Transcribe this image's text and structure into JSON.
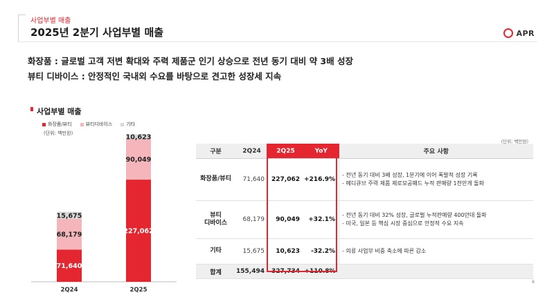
{
  "header": {
    "section_label": "사업부별 매출",
    "page_title": "2025년 2분기 사업부별 매출",
    "logo_text": "APR",
    "accent_color": "#e3262f"
  },
  "headlines": [
    "화장품 : 글로벌 고객 저변 확대와 주력 제품군 인기 상승으로 전년 동기 대비 약 3배 성장",
    "뷰티 디바이스 : 안정적인 국내외 수요를 바탕으로 견고한 성장세 지속"
  ],
  "chart_panel": {
    "title": "사업부별 매출",
    "unit": "(단위: 백만원)",
    "legend": [
      {
        "label": "화장품/뷰티",
        "color": "#e3262f"
      },
      {
        "label": "뷰티디바이스",
        "color": "#f4b6bb"
      },
      {
        "label": "기타",
        "color": "#d8d8d8"
      }
    ]
  },
  "chart_data": {
    "type": "bar",
    "stacked": true,
    "categories": [
      "2Q24",
      "2Q25"
    ],
    "series": [
      {
        "name": "화장품/뷰티",
        "values": [
          71640,
          227062
        ],
        "color": "#e3262f",
        "label_color": "#ffffff"
      },
      {
        "name": "뷰티디바이스",
        "values": [
          68179,
          90049
        ],
        "color": "#f4b6bb",
        "label_color": "#222222"
      },
      {
        "name": "기타",
        "values": [
          15675,
          10623
        ],
        "color": "#d8d8d8",
        "label_color": "#222222"
      }
    ],
    "ylim": [
      0,
      330000
    ],
    "grid": false,
    "legend_position": "top-left"
  },
  "table": {
    "unit": "(단위: 백만원)",
    "headers": [
      "구분",
      "2Q24",
      "2Q25",
      "YoY",
      "주요 사항"
    ],
    "rows": [
      {
        "label": [
          "화장품/뷰티"
        ],
        "q24": "71,640",
        "q25": "227,062",
        "yoy": "+216.9%",
        "notes": [
          "- 전년 동기 대비 3배 성장, 1분기에 이어 폭발적 성장 기록",
          "- 메디큐브 주력 제품 제로모공패드 누적 판매량 1천만개 돌파"
        ]
      },
      {
        "label": [
          "뷰티",
          "디바이스"
        ],
        "q24": "68,179",
        "q25": "90,049",
        "yoy": "+32.1%",
        "notes": [
          "- 전년 동기 대비 32% 성장, 글로벌 누적판매량 400만대 돌파",
          "- 미국, 일본 등 핵심 시장 중심으로 안정적 수요 지속"
        ]
      },
      {
        "label": [
          "기타"
        ],
        "q24": "15,675",
        "q25": "10,623",
        "yoy": "-32.2%",
        "notes": [
          "- 의류 사업부 비중 축소에 따른 감소"
        ]
      }
    ],
    "total": {
      "label": "합계",
      "q24": "155,494",
      "q25": "327,734",
      "yoy": "+110.8%"
    }
  },
  "page_number": "6"
}
